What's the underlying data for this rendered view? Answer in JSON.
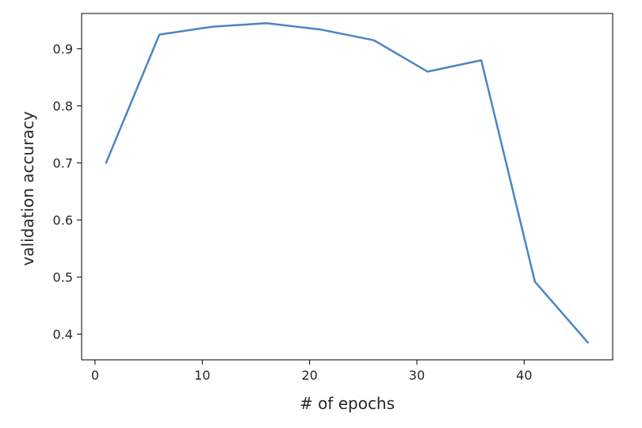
{
  "chart_data": {
    "type": "line",
    "title": "",
    "xlabel": "# of epochs",
    "ylabel": "validation accuracy",
    "xlim": [
      -1.25,
      48.25
    ],
    "ylim": [
      0.355,
      0.962
    ],
    "x_ticks": [
      0,
      10,
      20,
      30,
      40
    ],
    "y_ticks": [
      0.4,
      0.5,
      0.6,
      0.7,
      0.8,
      0.9
    ],
    "grid": false,
    "legend": "none",
    "series": [
      {
        "color": "#4c84c4",
        "x": [
          1,
          6,
          11,
          16,
          21,
          26,
          31,
          36,
          41,
          46
        ],
        "y": [
          0.699,
          0.925,
          0.939,
          0.945,
          0.934,
          0.915,
          0.86,
          0.88,
          0.492,
          0.384
        ]
      }
    ]
  }
}
